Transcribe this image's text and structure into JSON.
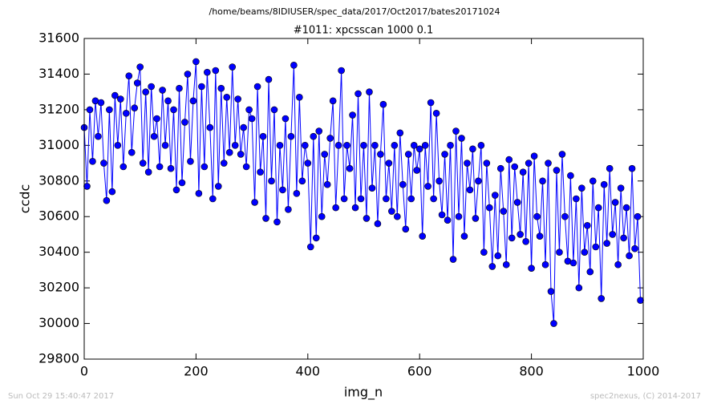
{
  "chart_data": {
    "type": "line",
    "suptitle": "/home/beams/8IDIUSER/spec_data/2017/Oct2017/bates20171024",
    "title": "#1011: xpcsscan 1000 0.1",
    "xlabel": "img_n",
    "ylabel": "ccdc",
    "footer_left": "Sun Oct 29 15:40:47 2017",
    "footer_right": "spec2nexus, (C) 2014-2017",
    "color": "#0000ff",
    "marker": "o",
    "xlim": [
      0,
      1000
    ],
    "xticks": [
      0,
      200,
      400,
      600,
      800,
      1000
    ],
    "ylim": [
      29800,
      31600
    ],
    "yticks": [
      29800,
      30000,
      30200,
      30400,
      30600,
      30800,
      31000,
      31200,
      31400,
      31600
    ],
    "x": [
      0,
      5,
      10,
      15,
      20,
      25,
      30,
      35,
      40,
      45,
      50,
      55,
      60,
      65,
      70,
      75,
      80,
      85,
      90,
      95,
      100,
      105,
      110,
      115,
      120,
      125,
      130,
      135,
      140,
      145,
      150,
      155,
      160,
      165,
      170,
      175,
      180,
      185,
      190,
      195,
      200,
      205,
      210,
      215,
      220,
      225,
      230,
      235,
      240,
      245,
      250,
      255,
      260,
      265,
      270,
      275,
      280,
      285,
      290,
      295,
      300,
      305,
      310,
      315,
      320,
      325,
      330,
      335,
      340,
      345,
      350,
      355,
      360,
      365,
      370,
      375,
      380,
      385,
      390,
      395,
      400,
      405,
      410,
      415,
      420,
      425,
      430,
      435,
      440,
      445,
      450,
      455,
      460,
      465,
      470,
      475,
      480,
      485,
      490,
      495,
      500,
      505,
      510,
      515,
      520,
      525,
      530,
      535,
      540,
      545,
      550,
      555,
      560,
      565,
      570,
      575,
      580,
      585,
      590,
      595,
      600,
      605,
      610,
      615,
      620,
      625,
      630,
      635,
      640,
      645,
      650,
      655,
      660,
      665,
      670,
      675,
      680,
      685,
      690,
      695,
      700,
      705,
      710,
      715,
      720,
      725,
      730,
      735,
      740,
      745,
      750,
      755,
      760,
      765,
      770,
      775,
      780,
      785,
      790,
      795,
      800,
      805,
      810,
      815,
      820,
      825,
      830,
      835,
      840,
      845,
      850,
      855,
      860,
      865,
      870,
      875,
      880,
      885,
      890,
      895,
      900,
      905,
      910,
      915,
      920,
      925,
      930,
      935,
      940,
      945,
      950,
      955,
      960,
      965,
      970,
      975,
      980,
      985,
      990,
      995
    ],
    "values": [
      31100,
      30770,
      31200,
      30910,
      31250,
      31050,
      31240,
      30900,
      30690,
      31200,
      30740,
      31280,
      31000,
      31260,
      30880,
      31180,
      31390,
      30960,
      31210,
      31350,
      31440,
      30900,
      31300,
      30850,
      31330,
      31050,
      31150,
      30880,
      31310,
      31000,
      31250,
      30870,
      31200,
      30750,
      31320,
      30790,
      31130,
      31400,
      30910,
      31250,
      31470,
      30730,
      31330,
      30880,
      31410,
      31100,
      30700,
      31420,
      30770,
      31320,
      30900,
      31270,
      30960,
      31440,
      31000,
      31260,
      30950,
      31100,
      30880,
      31200,
      31150,
      30680,
      31330,
      30850,
      31050,
      30590,
      31370,
      30800,
      31200,
      30570,
      31000,
      30750,
      31150,
      30640,
      31050,
      31450,
      30730,
      31270,
      30800,
      31000,
      30900,
      30430,
      31050,
      30480,
      31080,
      30600,
      30950,
      30780,
      31040,
      31250,
      30650,
      31000,
      31420,
      30700,
      31000,
      30870,
      31170,
      30650,
      31290,
      30700,
      31000,
      30590,
      31300,
      30760,
      31000,
      30560,
      30950,
      31230,
      30700,
      30900,
      30630,
      31000,
      30600,
      31070,
      30780,
      30530,
      30950,
      30700,
      31000,
      30860,
      30980,
      30490,
      31000,
      30770,
      31240,
      30700,
      31180,
      30800,
      30610,
      30950,
      30580,
      31000,
      30360,
      31080,
      30600,
      31040,
      30490,
      30900,
      30750,
      30980,
      30590,
      30800,
      31000,
      30400,
      30900,
      30650,
      30320,
      30720,
      30380,
      30870,
      30630,
      30330,
      30920,
      30480,
      30880,
      30680,
      30500,
      30850,
      30460,
      30900,
      30310,
      30940,
      30600,
      30490,
      30800,
      30330,
      30900,
      30180,
      30000,
      30860,
      30400,
      30950,
      30600,
      30350,
      30830,
      30340,
      30700,
      30200,
      30760,
      30400,
      30550,
      30290,
      30800,
      30430,
      30650,
      30140,
      30780,
      30450,
      30870,
      30500,
      30680,
      30330,
      30760,
      30480,
      30650,
      30380,
      30870,
      30420,
      30600,
      30130
    ]
  }
}
